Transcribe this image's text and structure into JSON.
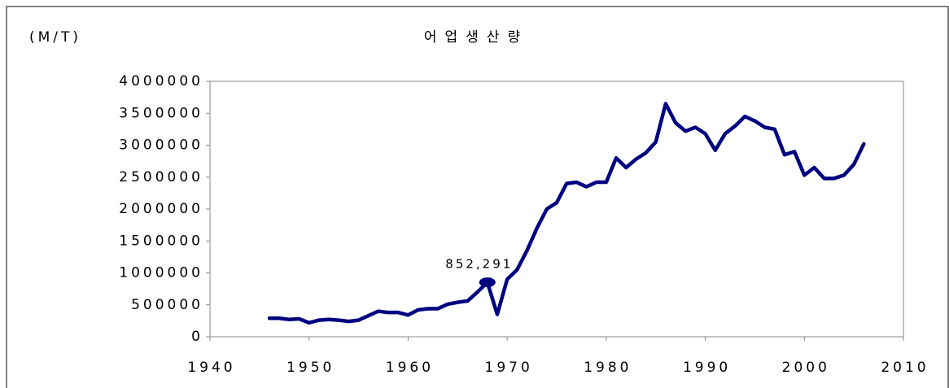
{
  "chart_data": {
    "type": "line",
    "title": "어업생산량",
    "y_unit": "(M/T)",
    "x": [
      1946,
      1947,
      1948,
      1949,
      1950,
      1951,
      1952,
      1953,
      1954,
      1955,
      1956,
      1957,
      1958,
      1959,
      1960,
      1961,
      1962,
      1963,
      1964,
      1965,
      1966,
      1967,
      1968,
      1969,
      1970,
      1971,
      1972,
      1973,
      1974,
      1975,
      1976,
      1977,
      1978,
      1979,
      1980,
      1981,
      1982,
      1983,
      1984,
      1985,
      1986,
      1987,
      1988,
      1989,
      1990,
      1991,
      1992,
      1993,
      1994,
      1995,
      1996,
      1997,
      1998,
      1999,
      2000,
      2001,
      2002,
      2003,
      2004,
      2005,
      2006
    ],
    "series": [
      {
        "name": "어업생산량",
        "color": "#000080",
        "values": [
          290000,
          290000,
          270000,
          280000,
          220000,
          260000,
          270000,
          260000,
          240000,
          260000,
          330000,
          400000,
          380000,
          380000,
          340000,
          420000,
          440000,
          440000,
          510000,
          540000,
          560000,
          700000,
          852291,
          350000,
          900000,
          1050000,
          1350000,
          1700000,
          2000000,
          2100000,
          2400000,
          2420000,
          2350000,
          2420000,
          2420000,
          2800000,
          2650000,
          2780000,
          2880000,
          3050000,
          3650000,
          3350000,
          3220000,
          3280000,
          3180000,
          2920000,
          3180000,
          3300000,
          3450000,
          3380000,
          3280000,
          3250000,
          2850000,
          2900000,
          2530000,
          2650000,
          2480000,
          2480000,
          2530000,
          2700000,
          3020000
        ]
      }
    ],
    "annotations": [
      {
        "text": "852,291",
        "x": 1968
      }
    ],
    "xlim": [
      1940,
      2010
    ],
    "xticks": [
      1940,
      1950,
      1960,
      1970,
      1980,
      1990,
      2000,
      2010
    ],
    "ylim": [
      0,
      4000000
    ],
    "yticks": [
      0,
      500000,
      1000000,
      1500000,
      2000000,
      2500000,
      3000000,
      3500000,
      4000000
    ]
  }
}
